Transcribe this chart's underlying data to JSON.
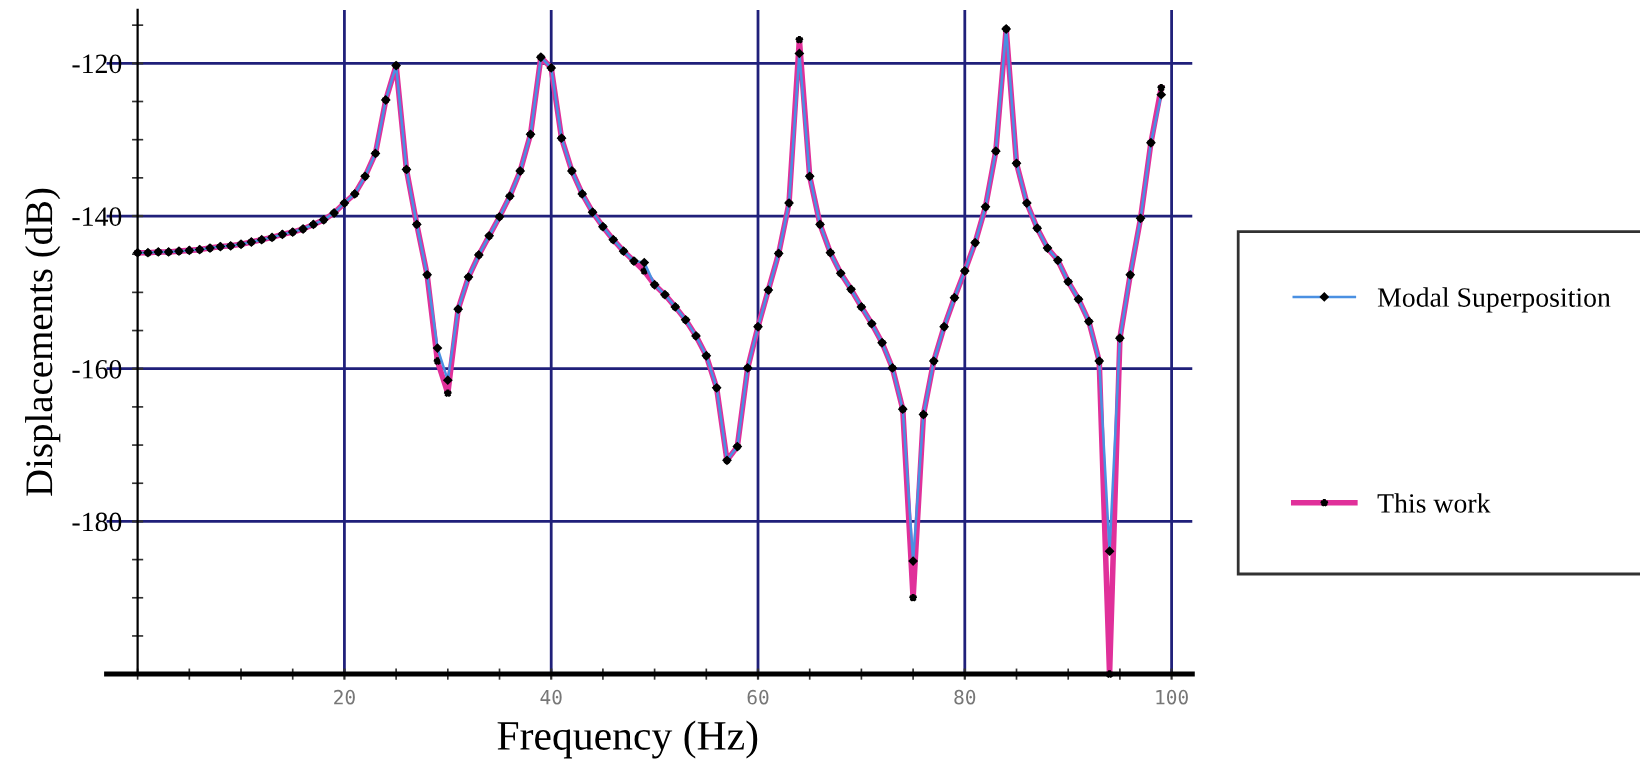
{
  "chart_data": {
    "type": "line",
    "xlabel": "Frequency (Hz)",
    "ylabel": "Displacements (dB)",
    "x": [
      0,
      1,
      2,
      3,
      4,
      5,
      6,
      7,
      8,
      9,
      10,
      11,
      12,
      13,
      14,
      15,
      16,
      17,
      18,
      19,
      20,
      21,
      22,
      23,
      24,
      25,
      26,
      27,
      28,
      29,
      30,
      31,
      32,
      33,
      34,
      35,
      36,
      37,
      38,
      39,
      40,
      41,
      42,
      43,
      44,
      45,
      46,
      47,
      48,
      49,
      50,
      51,
      52,
      53,
      54,
      55,
      56,
      57,
      58,
      59,
      60,
      61,
      62,
      63,
      64,
      65,
      66,
      67,
      68,
      69,
      70,
      71,
      72,
      73,
      74,
      75,
      76,
      77,
      78,
      79,
      80,
      81,
      82,
      83,
      84,
      85,
      86,
      87,
      88,
      89,
      90,
      91,
      92,
      93,
      94,
      95,
      96,
      97,
      98,
      99
    ],
    "series": [
      {
        "name": "Modal Superposition",
        "color": "#4a90e2",
        "marker": "diamond",
        "values": [
          -144.8,
          -144.8,
          -144.7,
          -144.7,
          -144.6,
          -144.5,
          -144.4,
          -144.2,
          -144.0,
          -143.9,
          -143.7,
          -143.4,
          -143.1,
          -142.8,
          -142.4,
          -142.1,
          -141.7,
          -141.1,
          -140.5,
          -139.6,
          -138.3,
          -137.1,
          -134.8,
          -131.8,
          -124.8,
          -120.3,
          -133.9,
          -141.1,
          -147.7,
          -157.3,
          -161.5,
          -152.2,
          -148.0,
          -145.1,
          -142.6,
          -140.1,
          -137.4,
          -134.1,
          -129.3,
          -119.2,
          -120.6,
          -129.8,
          -134.1,
          -137.1,
          -139.5,
          -141.4,
          -143.1,
          -144.6,
          -145.9,
          -146.1,
          -149.0,
          -150.3,
          -151.9,
          -153.6,
          -155.7,
          -158.3,
          -162.5,
          -172.0,
          -170.2,
          -159.9,
          -154.5,
          -149.7,
          -144.9,
          -138.3,
          -118.7,
          -134.8,
          -141.1,
          -144.8,
          -147.5,
          -149.6,
          -151.9,
          -154.1,
          -156.6,
          -159.9,
          -165.3,
          -185.2,
          -166.0,
          -159.0,
          -154.5,
          -150.7,
          -147.2,
          -143.5,
          -138.8,
          -131.5,
          -115.5,
          -133.1,
          -138.3,
          -141.6,
          -144.2,
          -145.8,
          -148.6,
          -150.9,
          -153.8,
          -159.0,
          -183.9,
          -156.0,
          -147.7,
          -140.3,
          -130.4,
          -124.1
        ]
      },
      {
        "name": "This work",
        "color": "#e0309a",
        "marker": "star",
        "values": [
          -144.8,
          -144.8,
          -144.7,
          -144.7,
          -144.6,
          -144.5,
          -144.4,
          -144.2,
          -144.0,
          -143.9,
          -143.7,
          -143.4,
          -143.1,
          -142.8,
          -142.4,
          -142.1,
          -141.7,
          -141.1,
          -140.5,
          -139.6,
          -138.3,
          -137.1,
          -134.8,
          -131.8,
          -124.8,
          -120.3,
          -133.9,
          -141.1,
          -147.7,
          -159.0,
          -163.2,
          -152.2,
          -148.0,
          -145.1,
          -142.6,
          -140.1,
          -137.4,
          -134.1,
          -129.3,
          -119.2,
          -120.6,
          -129.8,
          -134.1,
          -137.1,
          -139.5,
          -141.4,
          -143.1,
          -144.6,
          -145.9,
          -147.2,
          -149.0,
          -150.3,
          -151.9,
          -153.6,
          -155.7,
          -158.3,
          -162.5,
          -172.0,
          -170.2,
          -159.9,
          -154.5,
          -149.7,
          -144.9,
          -138.3,
          -116.9,
          -134.8,
          -141.1,
          -144.8,
          -147.5,
          -149.6,
          -151.9,
          -154.1,
          -156.6,
          -159.9,
          -165.3,
          -190.0,
          -166.0,
          -159.0,
          -154.5,
          -150.7,
          -147.2,
          -143.5,
          -138.8,
          -131.5,
          -115.5,
          -133.1,
          -138.3,
          -141.6,
          -144.2,
          -145.8,
          -148.6,
          -150.9,
          -153.8,
          -159.0,
          -200.0,
          -156.0,
          -147.7,
          -140.3,
          -130.4,
          -123.2
        ]
      }
    ],
    "xlim": [
      -3,
      102
    ],
    "ylim": [
      -200,
      -113
    ],
    "xticks": [
      20,
      40,
      60,
      80,
      100
    ],
    "yticks": [
      -120,
      -140,
      -160,
      -180
    ],
    "grid": true,
    "legend": "right",
    "line_style": "solid"
  }
}
